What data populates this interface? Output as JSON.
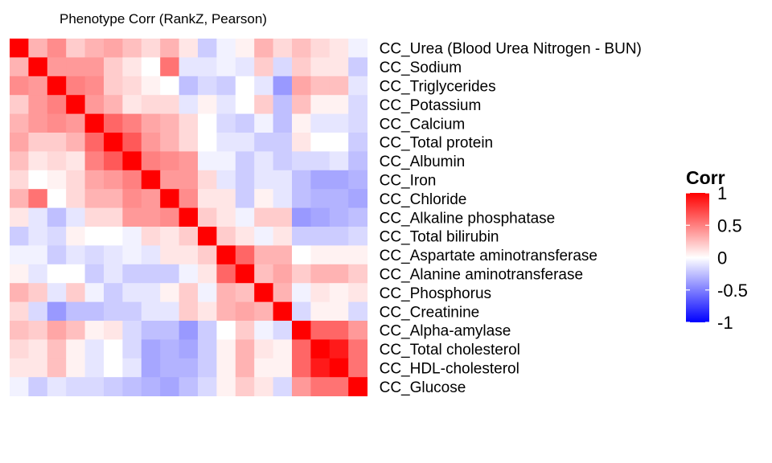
{
  "chart_data": {
    "type": "heatmap",
    "title": "Phenotype Corr (RankZ, Pearson)",
    "xlabel": "",
    "ylabel": "",
    "rows": [
      "CC_Urea (Blood Urea Nitrogen - BUN)",
      "CC_Sodium",
      "CC_Triglycerides",
      "CC_Potassium",
      "CC_Calcium",
      "CC_Total protein",
      "CC_Albumin",
      "CC_Iron",
      "CC_Chloride",
      "CC_Alkaline phosphatase",
      "CC_Total bilirubin",
      "CC_Aspartate aminotransferase",
      "CC_Alanine aminotransferase",
      "CC_Phosphorus",
      "CC_Creatinine",
      "CC_Alpha-amylase",
      "CC_Total cholesterol",
      "CC_HDL-cholesterol",
      "CC_Glucose"
    ],
    "values": [
      [
        1.0,
        0.3,
        0.45,
        0.2,
        0.3,
        0.35,
        0.25,
        0.15,
        0.3,
        0.1,
        -0.2,
        -0.05,
        0.05,
        0.3,
        0.15,
        0.25,
        0.15,
        0.1,
        -0.05
      ],
      [
        0.3,
        1.0,
        0.4,
        0.4,
        0.4,
        0.2,
        0.1,
        0.0,
        0.55,
        -0.1,
        -0.1,
        -0.05,
        -0.1,
        0.2,
        -0.15,
        0.2,
        0.1,
        0.1,
        -0.2
      ],
      [
        0.45,
        0.4,
        1.0,
        0.5,
        0.45,
        0.2,
        0.15,
        0.05,
        0.0,
        -0.25,
        -0.15,
        -0.2,
        0.0,
        -0.1,
        -0.4,
        0.35,
        0.25,
        0.25,
        -0.1
      ],
      [
        0.2,
        0.4,
        0.5,
        1.0,
        0.4,
        0.3,
        0.1,
        0.15,
        0.15,
        -0.1,
        0.05,
        -0.1,
        0.0,
        0.2,
        -0.25,
        0.25,
        0.05,
        0.05,
        -0.15
      ],
      [
        0.3,
        0.4,
        0.45,
        0.4,
        1.0,
        0.6,
        0.5,
        0.35,
        0.3,
        0.15,
        0.0,
        -0.15,
        -0.2,
        -0.05,
        -0.25,
        0.05,
        -0.1,
        -0.1,
        -0.15
      ],
      [
        0.35,
        0.2,
        0.2,
        0.3,
        0.6,
        1.0,
        0.65,
        0.4,
        0.3,
        0.15,
        0.0,
        -0.1,
        -0.1,
        -0.2,
        -0.2,
        0.1,
        0.0,
        0.0,
        -0.2
      ],
      [
        0.25,
        0.1,
        0.15,
        0.1,
        0.5,
        0.65,
        1.0,
        0.5,
        0.45,
        0.4,
        -0.05,
        -0.05,
        -0.2,
        -0.1,
        -0.2,
        -0.15,
        -0.15,
        -0.1,
        -0.25
      ],
      [
        0.15,
        0.0,
        0.05,
        0.15,
        0.35,
        0.4,
        0.5,
        1.0,
        0.4,
        0.4,
        0.15,
        -0.1,
        -0.2,
        -0.1,
        -0.1,
        -0.25,
        -0.35,
        -0.35,
        -0.3
      ],
      [
        0.3,
        0.55,
        0.0,
        0.15,
        0.3,
        0.3,
        0.45,
        0.4,
        1.0,
        0.45,
        0.1,
        0.1,
        -0.2,
        0.05,
        -0.1,
        -0.25,
        -0.3,
        -0.3,
        -0.35
      ],
      [
        0.1,
        -0.1,
        -0.25,
        -0.1,
        0.15,
        0.15,
        0.4,
        0.4,
        0.45,
        1.0,
        0.2,
        0.1,
        -0.05,
        0.2,
        0.2,
        -0.4,
        -0.35,
        -0.3,
        -0.25
      ],
      [
        -0.2,
        -0.1,
        -0.15,
        0.05,
        0.0,
        0.0,
        -0.05,
        0.15,
        0.1,
        0.2,
        1.0,
        0.2,
        0.1,
        -0.05,
        0.1,
        -0.2,
        -0.2,
        -0.2,
        -0.15
      ],
      [
        -0.05,
        -0.05,
        -0.2,
        -0.1,
        -0.15,
        -0.1,
        -0.05,
        -0.1,
        0.1,
        0.1,
        0.2,
        1.0,
        0.6,
        0.3,
        0.3,
        0.0,
        0.05,
        0.05,
        0.05
      ],
      [
        0.05,
        -0.1,
        0.0,
        0.0,
        -0.2,
        -0.1,
        -0.2,
        -0.2,
        -0.2,
        -0.05,
        0.1,
        0.6,
        1.0,
        0.25,
        0.35,
        0.2,
        0.3,
        0.3,
        0.2
      ],
      [
        0.3,
        0.2,
        -0.1,
        0.2,
        -0.05,
        -0.2,
        -0.1,
        -0.1,
        0.05,
        0.2,
        -0.05,
        0.3,
        0.25,
        1.0,
        0.3,
        -0.05,
        0.1,
        0.05,
        0.1
      ],
      [
        0.15,
        -0.15,
        -0.4,
        -0.25,
        -0.25,
        -0.2,
        -0.2,
        -0.1,
        -0.1,
        0.2,
        0.1,
        0.3,
        0.35,
        0.3,
        1.0,
        -0.15,
        0.05,
        0.05,
        -0.15
      ],
      [
        0.25,
        0.2,
        0.35,
        0.25,
        0.05,
        0.1,
        -0.15,
        -0.25,
        -0.25,
        -0.4,
        -0.2,
        0.0,
        0.2,
        -0.05,
        -0.15,
        1.0,
        0.6,
        0.6,
        0.4
      ],
      [
        0.15,
        0.1,
        0.25,
        0.05,
        -0.1,
        0.0,
        -0.15,
        -0.35,
        -0.3,
        -0.35,
        -0.2,
        0.05,
        0.3,
        0.1,
        0.05,
        0.6,
        1.0,
        0.9,
        0.55
      ],
      [
        0.1,
        0.1,
        0.25,
        0.05,
        -0.1,
        0.0,
        -0.1,
        -0.35,
        -0.3,
        -0.3,
        -0.2,
        0.05,
        0.3,
        0.05,
        0.05,
        0.6,
        0.9,
        1.0,
        0.55
      ],
      [
        -0.05,
        -0.2,
        -0.1,
        -0.15,
        -0.15,
        -0.2,
        -0.25,
        -0.3,
        -0.35,
        -0.25,
        -0.15,
        0.05,
        0.2,
        0.1,
        -0.15,
        0.4,
        0.55,
        0.55,
        1.0
      ]
    ],
    "scale": {
      "min": -1,
      "max": 1,
      "low_color": "#0000ff",
      "mid_color": "#ffffff",
      "high_color": "#ff0000"
    },
    "legend": {
      "title": "Corr",
      "ticks": [
        "1",
        "0.5",
        "0",
        "-0.5",
        "-1"
      ],
      "tick_values": [
        1,
        0.5,
        0,
        -0.5,
        -1
      ],
      "placement": "right"
    }
  }
}
